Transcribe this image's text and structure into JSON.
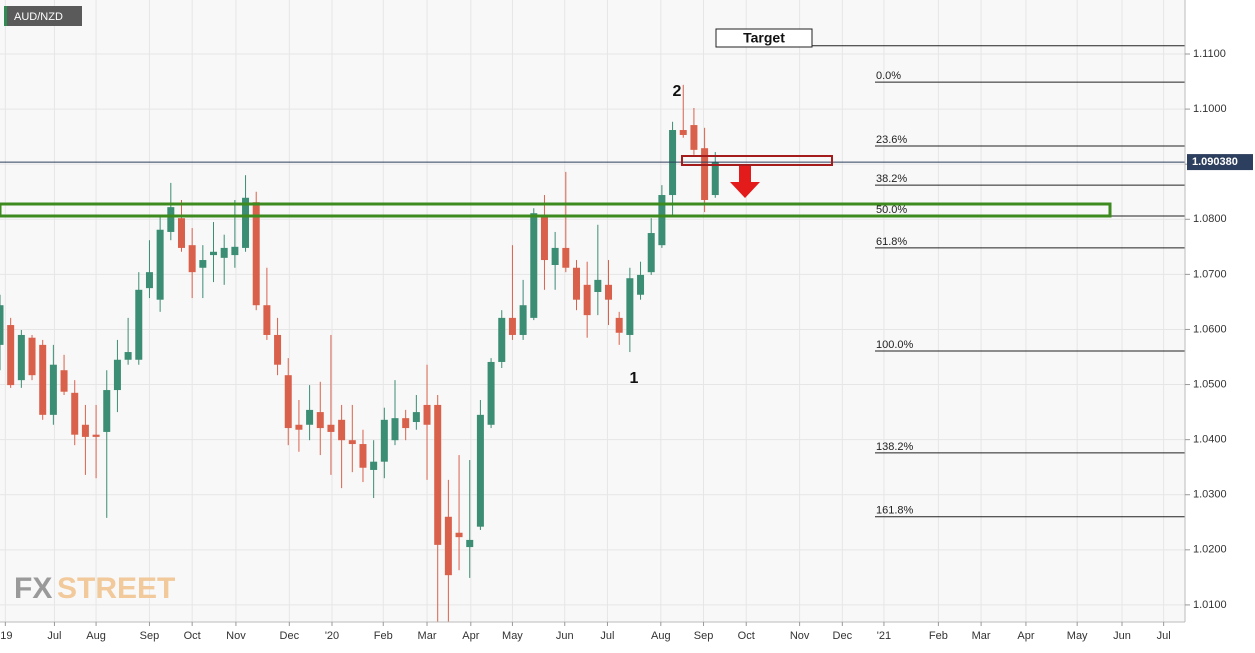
{
  "chart_data": {
    "type": "candlestick",
    "symbol": "AUD/NZD",
    "up_color": "#3b8d73",
    "down_color": "#d9614b",
    "open": [
      1.0572,
      1.0608,
      1.0508,
      1.0585,
      1.0572,
      1.0445,
      1.0526,
      1.0485,
      1.0427,
      1.0409,
      1.0414,
      1.049,
      1.0545,
      1.0545,
      1.0675,
      1.0654,
      1.0777,
      1.0802,
      1.0753,
      1.0712,
      1.0735,
      1.073,
      1.0735,
      1.0748,
      1.0831,
      1.0644,
      1.059,
      1.0517,
      1.0427,
      1.0427,
      1.045,
      1.0427,
      1.0436,
      1.0399,
      1.0392,
      1.0345,
      1.036,
      1.0399,
      1.0439,
      1.0432,
      1.0463,
      1.0463,
      1.026,
      1.0231,
      1.0205,
      1.0242,
      1.0427,
      1.0541,
      1.0621,
      1.059,
      1.0621,
      1.0808,
      1.0717,
      1.0748,
      1.0712,
      1.0681,
      1.0668,
      1.0681,
      1.0621,
      1.059,
      1.0663,
      1.0704,
      1.0753,
      1.0844,
      1.0962,
      1.0971,
      1.0929,
      1.0844
    ],
    "high": [
      1.0663,
      1.0621,
      1.0599,
      1.059,
      1.0581,
      1.0572,
      1.0554,
      1.0508,
      1.0463,
      1.0463,
      1.0526,
      1.0581,
      1.0621,
      1.0704,
      1.0762,
      1.0808,
      1.0866,
      1.0835,
      1.0784,
      1.0753,
      1.0795,
      1.0772,
      1.0835,
      1.088,
      1.085,
      1.0712,
      1.0621,
      1.0548,
      1.0472,
      1.0499,
      1.0505,
      1.059,
      1.0463,
      1.0463,
      1.0418,
      1.0399,
      1.0458,
      1.0508,
      1.0454,
      1.0481,
      1.0536,
      1.0481,
      1.0327,
      1.0372,
      1.0363,
      1.0472,
      1.0548,
      1.0635,
      1.0753,
      1.069,
      1.082,
      1.0844,
      1.0777,
      1.0886,
      1.0726,
      1.0723,
      1.079,
      1.0726,
      1.0632,
      1.0712,
      1.0723,
      1.0802,
      1.0862,
      1.0977,
      1.1044,
      1.1002,
      1.0966,
      1.0922
    ],
    "low": [
      1.0526,
      1.0494,
      1.0494,
      1.0508,
      1.0436,
      1.0427,
      1.0481,
      1.039,
      1.0336,
      1.033,
      1.0258,
      1.045,
      1.0536,
      1.0536,
      1.0657,
      1.0632,
      1.0762,
      1.0741,
      1.0657,
      1.0657,
      1.0686,
      1.0681,
      1.0712,
      1.0741,
      1.0635,
      1.0581,
      1.0517,
      1.039,
      1.0378,
      1.0399,
      1.0372,
      1.0336,
      1.0312,
      1.0341,
      1.0323,
      1.0294,
      1.033,
      1.039,
      1.0399,
      1.0418,
      1.0327,
      1.005,
      1.006,
      1.0163,
      1.0149,
      1.0236,
      1.0421,
      1.053,
      1.0581,
      1.0581,
      1.0617,
      1.0672,
      1.0672,
      1.0704,
      1.0635,
      1.0585,
      1.0626,
      1.0608,
      1.0572,
      1.0559,
      1.0654,
      1.0699,
      1.0748,
      1.0808,
      1.0948,
      1.0917,
      1.0813,
      1.0839
    ],
    "close": [
      1.0644,
      1.0499,
      1.059,
      1.0517,
      1.0445,
      1.0536,
      1.0487,
      1.0409,
      1.0405,
      1.0405,
      1.049,
      1.0545,
      1.0559,
      1.0672,
      1.0704,
      1.0781,
      1.0822,
      1.0748,
      1.0704,
      1.0726,
      1.0741,
      1.0748,
      1.075,
      1.0839,
      1.0644,
      1.059,
      1.0536,
      1.0421,
      1.0418,
      1.0454,
      1.0421,
      1.0414,
      1.0399,
      1.0392,
      1.0349,
      1.036,
      1.0436,
      1.0439,
      1.0421,
      1.045,
      1.0427,
      1.0209,
      1.0154,
      1.0223,
      1.0218,
      1.0445,
      1.0541,
      1.0621,
      1.059,
      1.0644,
      1.0811,
      1.0726,
      1.0748,
      1.0712,
      1.0654,
      1.0626,
      1.069,
      1.0654,
      1.0594,
      1.0693,
      1.0699,
      1.0775,
      1.0844,
      1.0962,
      1.0953,
      1.0926,
      1.0835,
      1.0904
    ],
    "xlim": [
      0,
      111
    ],
    "xticks": [
      {
        "value": 0.5,
        "label": "'19"
      },
      {
        "value": 5.1,
        "label": "Jul"
      },
      {
        "value": 9.0,
        "label": "Aug"
      },
      {
        "value": 14.0,
        "label": "Sep"
      },
      {
        "value": 18.0,
        "label": "Oct"
      },
      {
        "value": 22.1,
        "label": "Nov"
      },
      {
        "value": 27.1,
        "label": "Dec"
      },
      {
        "value": 31.1,
        "label": "'20"
      },
      {
        "value": 35.9,
        "label": "Feb"
      },
      {
        "value": 40.0,
        "label": "Mar"
      },
      {
        "value": 44.1,
        "label": "Apr"
      },
      {
        "value": 48.0,
        "label": "May"
      },
      {
        "value": 52.9,
        "label": "Jun"
      },
      {
        "value": 56.9,
        "label": "Jul"
      },
      {
        "value": 61.9,
        "label": "Aug"
      },
      {
        "value": 65.9,
        "label": "Sep"
      },
      {
        "value": 69.9,
        "label": "Oct"
      },
      {
        "value": 74.9,
        "label": "Nov"
      },
      {
        "value": 78.9,
        "label": "Dec"
      },
      {
        "value": 82.8,
        "label": "'21"
      },
      {
        "value": 87.9,
        "label": "Feb"
      },
      {
        "value": 91.9,
        "label": "Mar"
      },
      {
        "value": 96.1,
        "label": "Apr"
      },
      {
        "value": 100.9,
        "label": "May"
      },
      {
        "value": 105.1,
        "label": "Jun"
      },
      {
        "value": 109.0,
        "label": "Jul"
      }
    ],
    "ylim": [
      1.0069,
      1.1198
    ],
    "yticks": [
      {
        "value": 1.01,
        "label": "1.0100"
      },
      {
        "value": 1.02,
        "label": "1.0200"
      },
      {
        "value": 1.03,
        "label": "1.0300"
      },
      {
        "value": 1.04,
        "label": "1.0400"
      },
      {
        "value": 1.05,
        "label": "1.0500"
      },
      {
        "value": 1.06,
        "label": "1.0600"
      },
      {
        "value": 1.07,
        "label": "1.0700"
      },
      {
        "value": 1.08,
        "label": "1.0800"
      },
      {
        "value": 1.09,
        "label": "1.0900"
      },
      {
        "value": 1.1,
        "label": "1.1000"
      },
      {
        "value": 1.11,
        "label": "1.1100"
      }
    ],
    "grid": true,
    "last_price": {
      "value": 1.09038,
      "label": "1.090380"
    },
    "target": {
      "value": 1.1115,
      "label": "Target"
    },
    "fib_levels": [
      {
        "value": 1.1049,
        "label": "0.0%"
      },
      {
        "value": 1.0933,
        "label": "23.6%"
      },
      {
        "value": 1.0862,
        "label": "38.2%"
      },
      {
        "value": 1.0806,
        "label": "50.0%"
      },
      {
        "value": 1.0748,
        "label": "61.8%"
      },
      {
        "value": 1.0561,
        "label": "100.0%"
      },
      {
        "value": 1.0376,
        "label": "138.2%"
      },
      {
        "value": 1.026,
        "label": "161.8%"
      }
    ],
    "annotations": [
      "2",
      "1"
    ],
    "watermark": [
      "FX",
      "STREET"
    ]
  }
}
